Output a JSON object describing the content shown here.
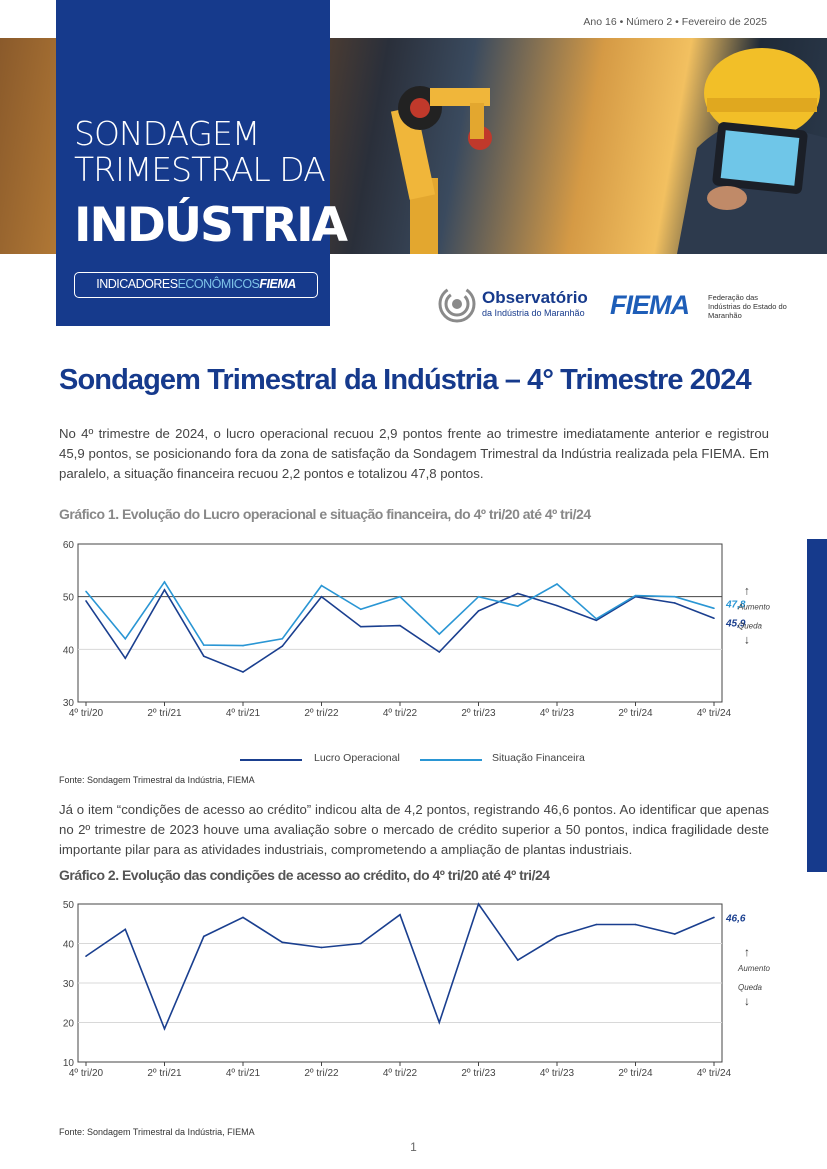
{
  "header": {
    "issue": "Ano 16 • Número 2 • Fevereiro de 2025"
  },
  "cover": {
    "title_line1": "SONDAGEM",
    "title_line2": "TRIMESTRAL DA",
    "title_line3": "INDÚSTRIA",
    "badge_part1": "INDICADORES",
    "badge_part2": "ECONÔMICOS",
    "badge_part3": "FIEMA"
  },
  "logos": {
    "observatorio_name": "Observatório",
    "observatorio_sub": "da Indústria do Maranhão",
    "fiema_name": "FIEMA",
    "fiema_sub": "Federação das Indústrias do Estado do Maranhão"
  },
  "main_title": "Sondagem Trimestral da Indústria – 4° Trimestre 2024",
  "paragraph1": "No 4º trimestre de 2024, o lucro operacional recuou 2,9 pontos frente ao trimestre imediatamente anterior e registrou 45,9 pontos, se posicionando fora da zona de satisfação da Sondagem Trimestral da Indústria realizada pela FIEMA. Em paralelo, a situação financeira recuou 2,2 pontos e totalizou 47,8 pontos.",
  "chart1_title": "Gráfico 1. Evolução do Lucro operacional e situação financeira, do 4º tri/20 até 4º tri/24",
  "source1": "Fonte: Sondagem Trimestral da Indústria, FIEMA",
  "paragraph2": "Já o item “condições de acesso ao crédito” indicou alta de 4,2 pontos, registrando 46,6 pontos. Ao identificar que apenas no 2º trimestre de 2023 houve uma avaliação sobre o mercado de crédito superior a 50 pontos, indica fragilidade deste importante pilar para as atividades industriais, comprometendo a ampliação de plantas industriais.",
  "chart2_title": "Gráfico 2. Evolução das condições de acesso ao crédito, do 4º tri/20 até 4º tri/24",
  "source2": "Fonte: Sondagem Trimestral da Indústria, FIEMA",
  "page_number": "1",
  "chart_data": [
    {
      "type": "line",
      "categories": [
        "4º tri/20",
        "1º tri/21",
        "2º tri/21",
        "3º tri/21",
        "4º tri/21",
        "1º tri/22",
        "2º tri/22",
        "3º tri/22",
        "4º tri/22",
        "1º tri/23",
        "2º tri/23",
        "3º tri/23",
        "4º tri/23",
        "1º tri/24",
        "2º tri/24",
        "3º tri/24",
        "4º tri/24"
      ],
      "tick_labels": [
        "4º tri/20",
        "2º tri/21",
        "4º tri/21",
        "2º tri/22",
        "4º tri/22",
        "2º tri/23",
        "4º tri/23",
        "2º tri/24",
        "4º tri/24"
      ],
      "tick_every": 2,
      "ylim": [
        30,
        60
      ],
      "yticks": [
        30,
        40,
        50,
        60
      ],
      "reference_line": 50,
      "series": [
        {
          "name": "Lucro Operacional",
          "color": "#1a3f8f",
          "values": [
            49.2,
            38.3,
            51.3,
            38.7,
            35.7,
            40.6,
            50.0,
            44.3,
            44.5,
            39.5,
            47.3,
            50.6,
            48.3,
            45.5,
            50.0,
            48.8,
            45.9
          ]
        },
        {
          "name": "Situação Financeira",
          "color": "#2a96d4",
          "values": [
            51.0,
            42.0,
            52.8,
            40.8,
            40.7,
            42.0,
            52.1,
            47.6,
            50.0,
            42.9,
            50.0,
            48.2,
            52.4,
            45.8,
            50.2,
            50.0,
            47.8
          ]
        }
      ],
      "end_labels": [
        "45,9",
        "47,8"
      ],
      "up_label": "Aumento",
      "down_label": "Queda",
      "legend_position": "bottom"
    },
    {
      "type": "line",
      "categories": [
        "4º tri/20",
        "1º tri/21",
        "2º tri/21",
        "3º tri/21",
        "4º tri/21",
        "1º tri/22",
        "2º tri/22",
        "3º tri/22",
        "4º tri/22",
        "1º tri/23",
        "2º tri/23",
        "3º tri/23",
        "4º tri/23",
        "1º tri/24",
        "2º tri/24",
        "3º tri/24",
        "4º tri/24"
      ],
      "tick_labels": [
        "4º tri/20",
        "2º tri/21",
        "4º tri/21",
        "2º tri/22",
        "4º tri/22",
        "2º tri/23",
        "4º tri/23",
        "2º tri/24",
        "4º tri/24"
      ],
      "tick_every": 2,
      "ylim": [
        10,
        50
      ],
      "yticks": [
        10,
        20,
        30,
        40,
        50
      ],
      "reference_line": 50,
      "series": [
        {
          "color": "#1a3f8f",
          "values": [
            36.8,
            43.6,
            18.4,
            41.8,
            46.6,
            40.3,
            39.0,
            40.0,
            47.3,
            20.0,
            50.0,
            35.8,
            41.8,
            44.8,
            44.8,
            42.4,
            46.6
          ]
        }
      ],
      "end_labels": [
        "46,6"
      ],
      "up_label": "Aumento",
      "down_label": "Queda"
    }
  ]
}
